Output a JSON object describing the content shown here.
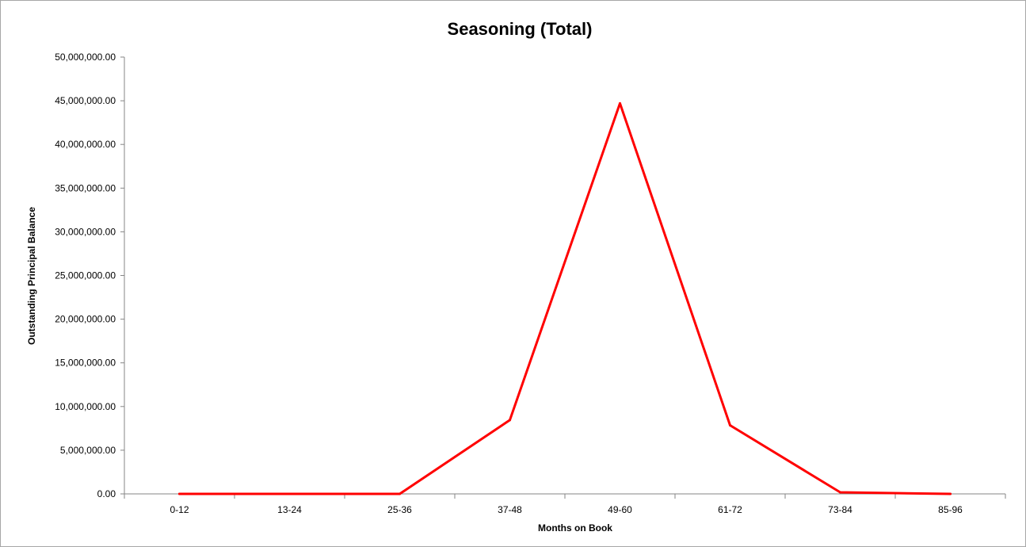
{
  "chart_data": {
    "type": "line",
    "title": "Seasoning (Total)",
    "xlabel": "Months on Book",
    "ylabel": "Outstanding Principal Balance",
    "categories": [
      "0-12",
      "13-24",
      "25-36",
      "37-48",
      "49-60",
      "61-72",
      "73-84",
      "85-96"
    ],
    "series": [
      {
        "values": [
          0,
          0,
          0,
          8450000,
          44700000,
          7850000,
          180000,
          0
        ],
        "color": "#ff0000"
      }
    ],
    "ylim": [
      0,
      50000000
    ],
    "yticks": [
      0,
      5000000,
      10000000,
      15000000,
      20000000,
      25000000,
      30000000,
      35000000,
      40000000,
      45000000,
      50000000
    ],
    "ytick_labels": [
      "0.00",
      "5,000,000.00",
      "10,000,000.00",
      "15,000,000.00",
      "20,000,000.00",
      "25,000,000.00",
      "30,000,000.00",
      "35,000,000.00",
      "40,000,000.00",
      "45,000,000.00",
      "50,000,000.00"
    ],
    "grid": false,
    "legend": "none"
  }
}
